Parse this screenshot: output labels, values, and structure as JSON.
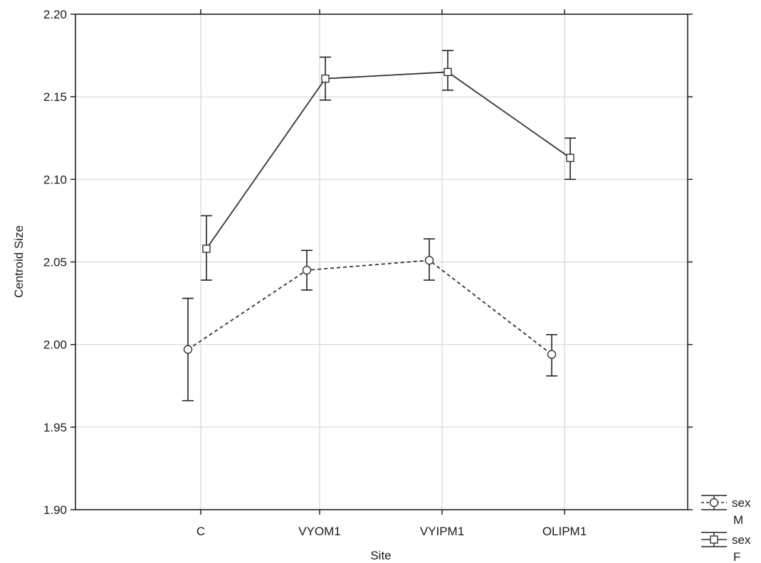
{
  "chart_data": {
    "type": "line",
    "xlabel": "Site",
    "ylabel": "Centroid Size",
    "categories": [
      "C",
      "VYOM1",
      "VYIPM1",
      "OLIPM1"
    ],
    "ylim": [
      1.9,
      2.2
    ],
    "yticks": [
      "1.90",
      "1.95",
      "2.00",
      "2.05",
      "2.10",
      "2.15",
      "2.20"
    ],
    "grid": true,
    "legend_position": "right-bottom, outside plot",
    "series": [
      {
        "name": "sex M",
        "legend_line1": "sex",
        "legend_line2": "M",
        "values": [
          1.997,
          2.045,
          2.051,
          1.994
        ],
        "error_low": [
          1.966,
          2.033,
          2.039,
          1.981
        ],
        "error_high": [
          2.028,
          2.057,
          2.064,
          2.006
        ],
        "line_style": "dashed",
        "marker": "circle",
        "color": "#333333"
      },
      {
        "name": "sex F",
        "legend_line1": "sex",
        "legend_line2": "F",
        "values": [
          2.058,
          2.161,
          2.165,
          2.113
        ],
        "error_low": [
          2.039,
          2.148,
          2.154,
          2.1
        ],
        "error_high": [
          2.078,
          2.174,
          2.178,
          2.125
        ],
        "line_style": "solid",
        "marker": "square",
        "color": "#333333"
      }
    ]
  }
}
